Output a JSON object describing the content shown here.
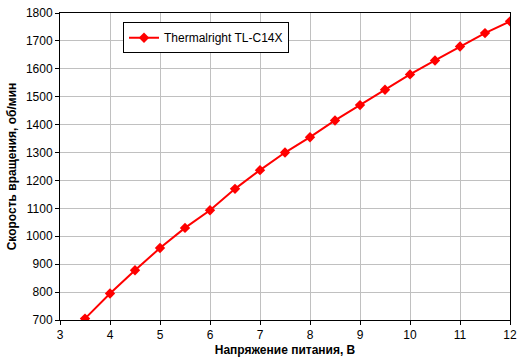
{
  "chart_data": {
    "type": "line",
    "x_label": "Напряжение питания, В",
    "y_label": "Скорость вращения, об/мин",
    "x": [
      3.5,
      4,
      4.5,
      5,
      5.5,
      6,
      6.5,
      7,
      7.5,
      8,
      8.5,
      9,
      9.5,
      10,
      10.5,
      11,
      11.5,
      12
    ],
    "series": [
      {
        "name": "Thermalright TL-C14X",
        "color": "#ff0000",
        "marker": "diamond",
        "line_style": "solid",
        "values": [
          705,
          795,
          878,
          958,
          1030,
          1093,
          1170,
          1237,
          1300,
          1355,
          1415,
          1470,
          1525,
          1580,
          1630,
          1680,
          1728,
          1770
        ]
      }
    ],
    "xlim": [
      3,
      12
    ],
    "xticks": [
      3,
      4,
      5,
      6,
      7,
      8,
      9,
      10,
      11,
      12
    ],
    "ylim": [
      700,
      1800
    ],
    "yticks": [
      700,
      800,
      900,
      1000,
      1100,
      1200,
      1300,
      1400,
      1500,
      1600,
      1700,
      1800
    ],
    "grid": true,
    "legend": "upper left"
  }
}
